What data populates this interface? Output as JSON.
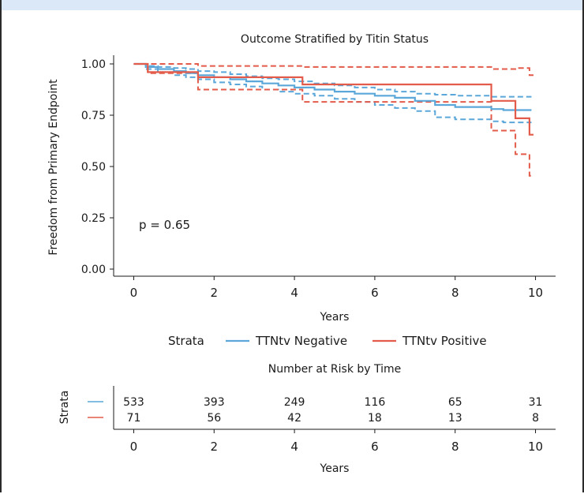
{
  "chart_data": [
    {
      "type": "line",
      "title": "Outcome Stratified by Titin Status",
      "xlabel": "Years",
      "ylabel": "Freedom from Primary Endpoint",
      "xlim": [
        -0.5,
        10.5
      ],
      "ylim": [
        0,
        1
      ],
      "x_ticks": [
        0,
        2,
        4,
        6,
        8,
        10
      ],
      "y_ticks": [
        0.0,
        0.25,
        0.5,
        0.75,
        1.0
      ],
      "y_tick_labels": [
        "0.00",
        "0.25",
        "0.50",
        "0.75",
        "1.00"
      ],
      "annotation": "p = 0.65",
      "grid": false,
      "legend": {
        "title": "Strata",
        "position": "bottom"
      },
      "series": [
        {
          "name": "TTNtv Negative",
          "color": "#5ba7d9",
          "x": [
            0,
            0.3,
            0.6,
            1.0,
            1.3,
            1.6,
            2.0,
            2.4,
            2.8,
            3.2,
            3.6,
            4.0,
            4.5,
            5.0,
            5.5,
            6.0,
            6.5,
            7.0,
            7.5,
            8.0,
            8.9,
            9.2,
            9.9
          ],
          "y": [
            1.0,
            0.985,
            0.975,
            0.965,
            0.955,
            0.945,
            0.935,
            0.925,
            0.915,
            0.905,
            0.895,
            0.885,
            0.875,
            0.865,
            0.855,
            0.845,
            0.835,
            0.82,
            0.8,
            0.79,
            0.78,
            0.775,
            0.775
          ],
          "ci_lower": [
            1.0,
            0.975,
            0.96,
            0.945,
            0.935,
            0.925,
            0.91,
            0.9,
            0.89,
            0.875,
            0.865,
            0.855,
            0.845,
            0.83,
            0.815,
            0.8,
            0.785,
            0.77,
            0.74,
            0.73,
            0.72,
            0.715,
            0.715
          ],
          "ci_upper": [
            1.0,
            0.99,
            0.985,
            0.98,
            0.975,
            0.965,
            0.96,
            0.95,
            0.94,
            0.93,
            0.925,
            0.915,
            0.905,
            0.895,
            0.885,
            0.875,
            0.865,
            0.855,
            0.85,
            0.845,
            0.84,
            0.84,
            0.84
          ]
        },
        {
          "name": "TTNtv Positive",
          "color": "#e35b4a",
          "x": [
            0,
            0.35,
            1.6,
            4.2,
            8.9,
            9.5,
            9.85,
            9.95
          ],
          "y": [
            1.0,
            0.96,
            0.935,
            0.9,
            0.82,
            0.735,
            0.655,
            0.655
          ],
          "ci_lower": [
            1.0,
            0.955,
            0.875,
            0.815,
            0.675,
            0.56,
            0.455,
            0.455
          ],
          "ci_upper": [
            1.0,
            1.0,
            0.99,
            0.985,
            0.975,
            0.98,
            0.945,
            0.945
          ]
        }
      ]
    },
    {
      "type": "table",
      "title": "Number at Risk by Time",
      "xlabel": "Years",
      "ylabel": "Strata",
      "x_ticks": [
        0,
        2,
        4,
        6,
        8,
        10
      ],
      "rows": [
        {
          "color": "#5ba7d9",
          "values": [
            533,
            393,
            249,
            116,
            65,
            31
          ]
        },
        {
          "color": "#e35b4a",
          "values": [
            71,
            56,
            42,
            18,
            13,
            8
          ]
        }
      ]
    }
  ]
}
